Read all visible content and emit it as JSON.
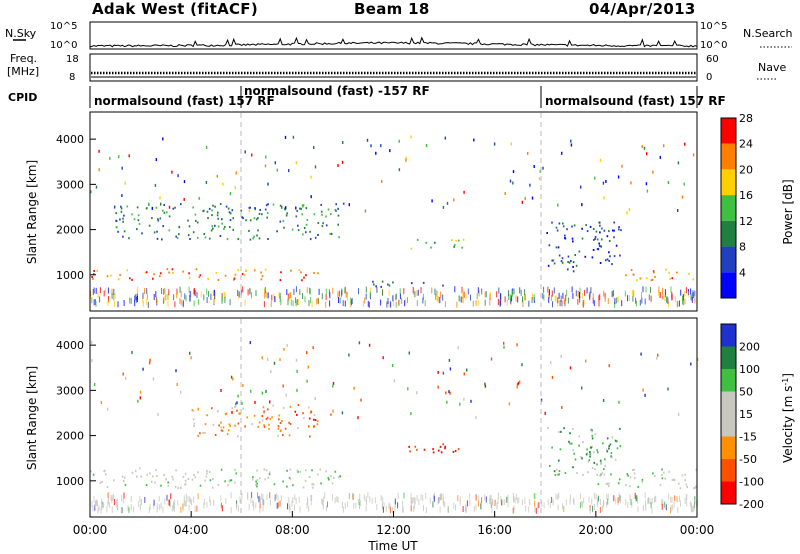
{
  "header": {
    "station": "Adak West (fitACF)",
    "beam": "Beam 18",
    "date": "04/Apr/2013"
  },
  "sky_panel": {
    "left_label": "N.Sky",
    "right_label": "N.Search",
    "left_ticks": [
      "10^5",
      "10^0"
    ],
    "right_ticks": [
      "10^5",
      "10^0"
    ]
  },
  "freq_panel": {
    "left_label_1": "Freq.",
    "left_label_2": "[MHz]",
    "right_label": "Nave",
    "left_ticks": [
      "18",
      "8"
    ],
    "right_ticks": [
      "60",
      "0"
    ]
  },
  "cpid": {
    "label": "CPID",
    "segments": [
      {
        "start_hour": 0,
        "end_hour": 6,
        "text": "normalsound (fast) 157 RF"
      },
      {
        "start_hour": 6,
        "end_hour": 18,
        "text": "normalsound (fast) -157 RF"
      },
      {
        "start_hour": 18,
        "end_hour": 24,
        "text": "normalsound (fast) 157 RF"
      }
    ]
  },
  "chart_data": [
    {
      "type": "heatmap",
      "panel": "power",
      "ylabel": "Slant Range [km]",
      "ylim": [
        200,
        4600
      ],
      "y_ticks": [
        1000,
        2000,
        3000,
        4000
      ],
      "xlim": [
        0,
        24
      ],
      "x_ticks": [
        "00:00",
        "04:00",
        "08:00",
        "12:00",
        "16:00",
        "20:00",
        "00:00"
      ],
      "colorbar": {
        "label": "Power [dB]",
        "ticks": [
          "4",
          "8",
          "12",
          "16",
          "20",
          "24",
          "28"
        ],
        "colors": [
          "#0000ff",
          "#2040c0",
          "#208040",
          "#40c040",
          "#ffd000",
          "#ff8000",
          "#ff0000"
        ]
      },
      "features": [
        {
          "desc": "strong band",
          "hours": [
            0,
            9
          ],
          "range_km": [
            900,
            1150
          ],
          "power_db": 24
        },
        {
          "desc": "strong band",
          "hours": [
            21,
            24
          ],
          "range_km": [
            900,
            1150
          ],
          "power_db": 24
        },
        {
          "desc": "echo band",
          "hours": [
            1,
            10
          ],
          "range_km": [
            1800,
            2600
          ],
          "power_db": 10
        },
        {
          "desc": "echo patch",
          "hours": [
            12.5,
            14.8
          ],
          "range_km": [
            1600,
            1800
          ],
          "power_db": 14
        },
        {
          "desc": "echo patch",
          "hours": [
            11,
            14
          ],
          "range_km": [
            750,
            900
          ],
          "power_db": 10
        },
        {
          "desc": "ground scatter band",
          "hours": [
            18,
            21
          ],
          "range_km": [
            1100,
            2200
          ],
          "power_db": 8
        }
      ]
    },
    {
      "type": "heatmap",
      "panel": "velocity",
      "ylabel": "Slant Range [km]",
      "ylim": [
        200,
        4600
      ],
      "y_ticks": [
        1000,
        2000,
        3000,
        4000
      ],
      "xlim": [
        0,
        24
      ],
      "x_ticks": [
        "00:00",
        "04:00",
        "08:00",
        "12:00",
        "16:00",
        "20:00",
        "00:00"
      ],
      "xlabel": "Time UT",
      "colorbar": {
        "label": "Velocity [m s^-1]",
        "ticks": [
          "200",
          "100",
          "50",
          "15",
          "-15",
          "-50",
          "-100",
          "-200"
        ],
        "colors": [
          "#2030d0",
          "#208040",
          "#40c040",
          "#c8c8c0",
          "#c8c8c0",
          "#ff9000",
          "#ff5000",
          "#ff0000"
        ]
      },
      "features": [
        {
          "desc": "ground scatter",
          "hours": [
            0,
            10
          ],
          "range_km": [
            850,
            1300
          ],
          "velocity": 0
        },
        {
          "desc": "ground scatter",
          "hours": [
            20,
            24
          ],
          "range_km": [
            850,
            1300
          ],
          "velocity": 0
        },
        {
          "desc": "negative flow",
          "hours": [
            4,
            9
          ],
          "range_km": [
            2000,
            2700
          ],
          "velocity": -60
        },
        {
          "desc": "strong negative",
          "hours": [
            8,
            9.5
          ],
          "range_km": [
            2350,
            2550
          ],
          "velocity": -200
        },
        {
          "desc": "mixed patch",
          "hours": [
            12.5,
            15
          ],
          "range_km": [
            1650,
            1900
          ],
          "velocity": -150
        },
        {
          "desc": "positive trail",
          "hours": [
            18,
            21
          ],
          "range_km": [
            1100,
            2200
          ],
          "velocity": 40
        }
      ]
    }
  ]
}
